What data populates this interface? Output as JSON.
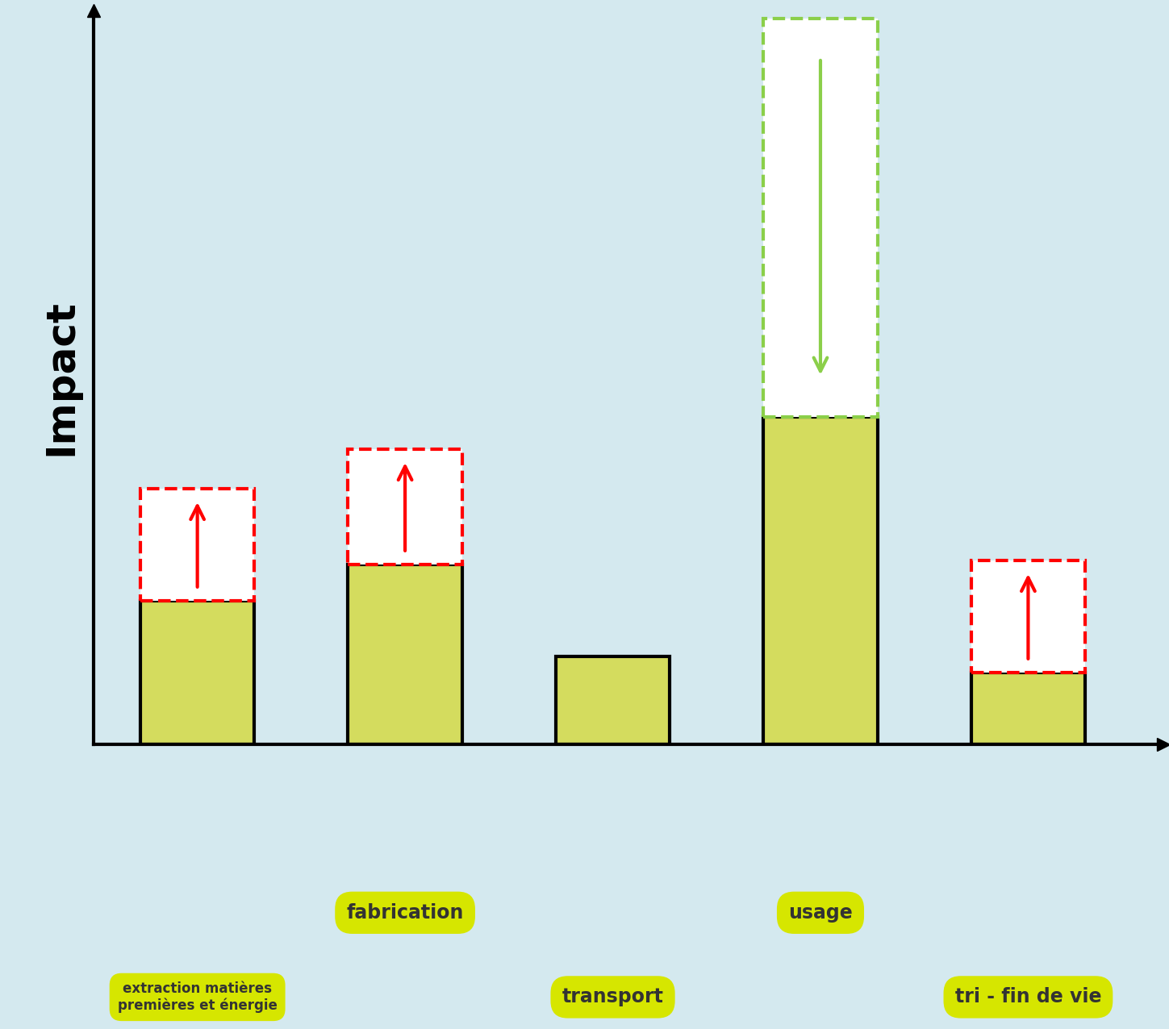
{
  "chart_data": {
    "type": "bar",
    "y_label": "Impact",
    "categories": [
      "extraction matières\npremières et énergie",
      "fabrication",
      "transport",
      "usage",
      "tri - fin de vie"
    ],
    "values": [
      1.8,
      2.25,
      1.1,
      4.1,
      0.9
    ],
    "variations": [
      1.4,
      1.45,
      null,
      -5.0,
      1.4
    ],
    "color": "#d4dc5e",
    "ylim": [
      0,
      9.2
    ],
    "yticks": [],
    "tick_labels": false,
    "grid": false
  }
}
